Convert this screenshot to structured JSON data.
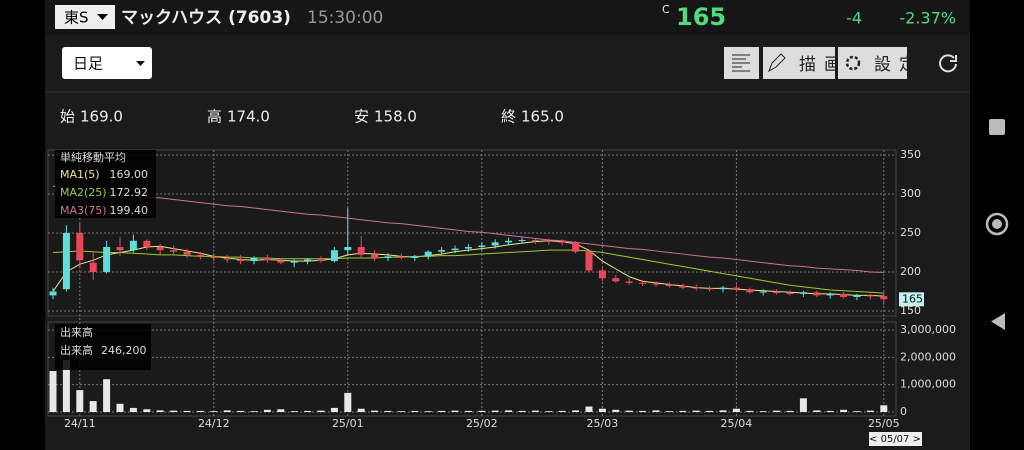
{
  "header": {
    "exchange": "東S",
    "name": "マックハウス (7603)",
    "time": "15:30:00",
    "price_prefix": "C",
    "price": 165,
    "change": -4,
    "change_pct": "-2.37%"
  },
  "toolbar": {
    "period": "日足",
    "draw": "描画",
    "settings": "設定"
  },
  "ohlc": [
    {
      "label": "始",
      "value": "169.0"
    },
    {
      "label": "高",
      "value": "174.0"
    },
    {
      "label": "安",
      "value": "158.0"
    },
    {
      "label": "終",
      "value": "165.0"
    }
  ],
  "chart_data": [
    {
      "type": "candlestick",
      "legend_title": "単純移動平均",
      "current_date": "< 05/07 >",
      "categories": [
        null,
        null,
        "24/11",
        null,
        null,
        null,
        null,
        null,
        null,
        null,
        null,
        null,
        "24/12",
        null,
        null,
        null,
        null,
        null,
        null,
        null,
        null,
        null,
        "25/01",
        null,
        null,
        null,
        null,
        null,
        null,
        null,
        null,
        null,
        "25/02",
        null,
        null,
        null,
        null,
        null,
        null,
        null,
        null,
        "25/03",
        null,
        null,
        null,
        null,
        null,
        null,
        null,
        null,
        null,
        "25/04",
        null,
        null,
        null,
        null,
        null,
        null,
        null,
        null,
        null,
        null,
        "25/05"
      ],
      "candles": [
        [
          170,
          180,
          165,
          175
        ],
        [
          178,
          260,
          175,
          250
        ],
        [
          250,
          262,
          205,
          215
        ],
        [
          212,
          225,
          190,
          200
        ],
        [
          200,
          240,
          198,
          232
        ],
        [
          232,
          245,
          220,
          228
        ],
        [
          228,
          248,
          225,
          240
        ],
        [
          240,
          242,
          228,
          232
        ],
        [
          232,
          236,
          222,
          228
        ],
        [
          228,
          234,
          222,
          226
        ],
        [
          226,
          230,
          218,
          222
        ],
        [
          222,
          226,
          216,
          220
        ],
        [
          220,
          224,
          214,
          218
        ],
        [
          218,
          222,
          212,
          216
        ],
        [
          216,
          222,
          210,
          214
        ],
        [
          214,
          220,
          210,
          218
        ],
        [
          218,
          222,
          212,
          215
        ],
        [
          215,
          218,
          210,
          212
        ],
        [
          212,
          216,
          206,
          214
        ],
        [
          214,
          218,
          210,
          216
        ],
        [
          216,
          220,
          212,
          214
        ],
        [
          214,
          232,
          212,
          228
        ],
        [
          228,
          282,
          222,
          232
        ],
        [
          232,
          246,
          218,
          222
        ],
        [
          222,
          228,
          214,
          218
        ],
        [
          218,
          224,
          214,
          220
        ],
        [
          220,
          224,
          216,
          218
        ],
        [
          218,
          222,
          214,
          220
        ],
        [
          220,
          228,
          216,
          226
        ],
        [
          226,
          232,
          222,
          228
        ],
        [
          228,
          234,
          224,
          230
        ],
        [
          230,
          236,
          226,
          232
        ],
        [
          232,
          238,
          228,
          234
        ],
        [
          234,
          242,
          230,
          238
        ],
        [
          238,
          244,
          234,
          240
        ],
        [
          240,
          244,
          236,
          241
        ],
        [
          241,
          244,
          236,
          240
        ],
        [
          240,
          243,
          235,
          239
        ],
        [
          239,
          242,
          234,
          238
        ],
        [
          238,
          240,
          224,
          226
        ],
        [
          226,
          228,
          200,
          202
        ],
        [
          202,
          205,
          188,
          192
        ],
        [
          192,
          196,
          186,
          188
        ],
        [
          188,
          192,
          184,
          186
        ],
        [
          186,
          190,
          182,
          185
        ],
        [
          185,
          188,
          181,
          184
        ],
        [
          184,
          187,
          180,
          182
        ],
        [
          182,
          185,
          178,
          180
        ],
        [
          180,
          184,
          176,
          179
        ],
        [
          179,
          182,
          175,
          178
        ],
        [
          178,
          182,
          174,
          180
        ],
        [
          180,
          184,
          176,
          178
        ],
        [
          178,
          180,
          172,
          174
        ],
        [
          174,
          178,
          170,
          175
        ],
        [
          175,
          178,
          171,
          173
        ],
        [
          173,
          176,
          170,
          172
        ],
        [
          172,
          176,
          168,
          174
        ],
        [
          174,
          176,
          168,
          170
        ],
        [
          170,
          174,
          166,
          172
        ],
        [
          172,
          174,
          166,
          168
        ],
        [
          168,
          172,
          164,
          170
        ],
        [
          170,
          172,
          165,
          169
        ],
        [
          169,
          174,
          158,
          165
        ]
      ],
      "up_color": "#5fdede",
      "down_color": "#e8485a",
      "series": [
        {
          "name": "MA1(5)",
          "color": "#f0e68c",
          "last_label": "169.00",
          "values": [
            175,
            200,
            210,
            215,
            222,
            225,
            228,
            232,
            233,
            230,
            227,
            224,
            220,
            218,
            216,
            215,
            216,
            215,
            214,
            214,
            215,
            217,
            222,
            224,
            223,
            222,
            220,
            219,
            221,
            223,
            226,
            228,
            230,
            232,
            235,
            237,
            239,
            240,
            239,
            236,
            228,
            214,
            204,
            194,
            188,
            186,
            184,
            182,
            180,
            179,
            179,
            178,
            177,
            176,
            175,
            174,
            173,
            172,
            172,
            171,
            170,
            170,
            169
          ]
        },
        {
          "name": "MA2(25)",
          "color": "#9acd32",
          "last_label": "172.92",
          "values": [
            225,
            226,
            227,
            226,
            225,
            225,
            224,
            223,
            222,
            222,
            221,
            220,
            220,
            219,
            219,
            218,
            218,
            217,
            217,
            217,
            217,
            217,
            218,
            218,
            218,
            219,
            219,
            220,
            220,
            221,
            221,
            222,
            223,
            224,
            225,
            226,
            227,
            228,
            228,
            228,
            227,
            225,
            222,
            219,
            216,
            213,
            210,
            207,
            204,
            201,
            198,
            195,
            192,
            189,
            186,
            183,
            181,
            179,
            177,
            176,
            175,
            174,
            172.92
          ]
        },
        {
          "name": "MA3(75)",
          "color": "#d0709a",
          "last_label": "199.40",
          "values": [
            310,
            308,
            306,
            304,
            302,
            300,
            298,
            296,
            295,
            293,
            291,
            289,
            287,
            285,
            284,
            282,
            280,
            278,
            276,
            274,
            273,
            271,
            269,
            267,
            265,
            263,
            262,
            260,
            258,
            256,
            254,
            252,
            251,
            249,
            247,
            245,
            243,
            241,
            240,
            238,
            236,
            234,
            232,
            230,
            229,
            227,
            225,
            223,
            221,
            219,
            218,
            216,
            214,
            212,
            210,
            208,
            207,
            205,
            204,
            203,
            202,
            200,
            199.4
          ]
        }
      ],
      "ylim": [
        150,
        350
      ],
      "yticks": [
        150,
        200,
        250,
        300,
        350
      ],
      "grid": true
    },
    {
      "type": "bar",
      "legend_title": "出来高",
      "series_name": "出来高",
      "last_label": "246,200",
      "color": "#e8e8e8",
      "values": [
        1500000,
        1900000,
        800000,
        400000,
        1200000,
        300000,
        150000,
        100000,
        60000,
        50000,
        40000,
        40000,
        30000,
        60000,
        40000,
        30000,
        80000,
        100000,
        30000,
        40000,
        50000,
        150000,
        700000,
        120000,
        50000,
        40000,
        30000,
        40000,
        30000,
        40000,
        50000,
        40000,
        40000,
        50000,
        60000,
        40000,
        50000,
        30000,
        40000,
        60000,
        200000,
        120000,
        80000,
        50000,
        40000,
        60000,
        30000,
        40000,
        50000,
        40000,
        60000,
        120000,
        40000,
        30000,
        50000,
        40000,
        500000,
        60000,
        40000,
        80000,
        30000,
        50000,
        246200
      ],
      "ylim": [
        0,
        3000000
      ],
      "yticks": [
        0,
        {
          "value": 1000000,
          "label": "1,000,000"
        },
        {
          "value": 2000000,
          "label": "2,000,000"
        },
        {
          "value": 3000000,
          "label": "3,000,000"
        }
      ],
      "grid": true
    }
  ]
}
